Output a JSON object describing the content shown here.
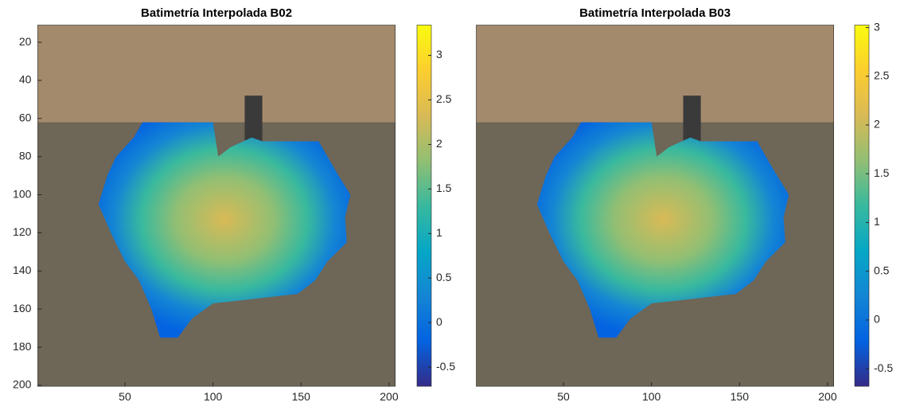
{
  "chart_data": [
    {
      "type": "heatmap",
      "title": "Batimetría Interpolada B02",
      "xlim": [
        0.5,
        203.5
      ],
      "xticks": [
        50,
        100,
        150,
        200
      ],
      "ylim": [
        11,
        200.5
      ],
      "yticks": [
        20,
        40,
        60,
        80,
        100,
        120,
        140,
        160,
        180,
        200
      ],
      "clim": [
        -0.715,
        3.34
      ],
      "cticks": [
        -0.5,
        0,
        0.5,
        1,
        1.5,
        2,
        2.5,
        3
      ],
      "colormap": [
        "#352a87",
        "#0363e1",
        "#1485d4",
        "#06a7c6",
        "#38b99e",
        "#92bf73",
        "#d9ba56",
        "#fcce2e",
        "#f9fb0e"
      ]
    },
    {
      "type": "heatmap",
      "title": "Batimetría Interpolada B03",
      "xlim": [
        0.5,
        203.5
      ],
      "xticks": [
        50,
        100,
        150,
        200
      ],
      "ylim": [
        11,
        200.5
      ],
      "clim": [
        -0.68,
        3.025
      ],
      "cticks": [
        -0.5,
        0,
        0.5,
        1,
        1.5,
        2,
        2.5,
        3
      ],
      "colormap": [
        "#352a87",
        "#0363e1",
        "#1485d4",
        "#06a7c6",
        "#38b99e",
        "#92bf73",
        "#d9ba56",
        "#fcce2e",
        "#f9fb0e"
      ]
    }
  ]
}
